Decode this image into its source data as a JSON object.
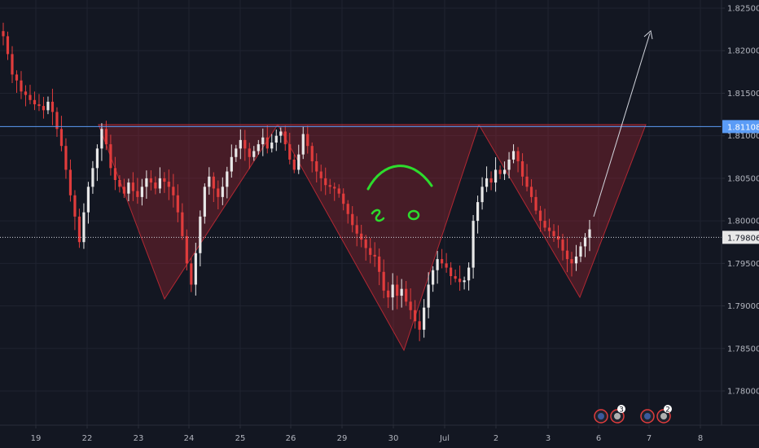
{
  "chart_data": {
    "type": "candlestick",
    "y_ticks": [
      "1.82500",
      "1.82000",
      "1.81500",
      "1.81000",
      "1.80500",
      "1.80000",
      "1.79500",
      "1.79000",
      "1.78500",
      "1.78000"
    ],
    "x_ticks": [
      "19",
      "22",
      "23",
      "24",
      "25",
      "26",
      "29",
      "30",
      "Jul",
      "2",
      "3",
      "6",
      "7",
      "8"
    ],
    "ylim": [
      1.7755,
      1.826
    ],
    "neckline": {
      "value": 1.81108,
      "label": "1.81108",
      "color": "#5b9cf6"
    },
    "current_price": {
      "value": 1.79806,
      "label": "1.79806"
    },
    "pattern": "inverse head and shoulders",
    "pattern_color": "#b22833",
    "projection_arrow_color": "#d1d4dc",
    "up_color": "#e8e8e8",
    "down_color": "#e03c3c",
    "candle_series": [
      1.8217,
      1.8196,
      1.8172,
      1.8165,
      1.8152,
      1.8148,
      1.8142,
      1.8137,
      1.8135,
      1.813,
      1.814,
      1.8128,
      1.8108,
      1.8088,
      1.806,
      1.803,
      1.8005,
      1.7975,
      1.801,
      1.804,
      1.8062,
      1.8085,
      1.8108,
      1.809,
      1.8062,
      1.8048,
      1.804,
      1.8032,
      1.8045,
      1.8035,
      1.8028,
      1.804,
      1.805,
      1.8045,
      1.8038,
      1.805,
      1.8046,
      1.804,
      1.803,
      1.801,
      1.7982,
      1.795,
      1.7925,
      1.7962,
      1.8005,
      1.804,
      1.8052,
      1.8038,
      1.8028,
      1.804,
      1.8058,
      1.8075,
      1.8085,
      1.8095,
      1.8085,
      1.8075,
      1.8082,
      1.809,
      1.8098,
      1.8085,
      1.8092,
      1.81,
      1.8105,
      1.809,
      1.8072,
      1.806,
      1.8078,
      1.8102,
      1.8088,
      1.807,
      1.8058,
      1.805,
      1.8042,
      1.804,
      1.8038,
      1.8032,
      1.802,
      1.8008,
      1.7995,
      1.7985,
      1.7978,
      1.7968,
      1.796,
      1.7958,
      1.794,
      1.7918,
      1.791,
      1.7925,
      1.7912,
      1.792,
      1.7905,
      1.7895,
      1.7882,
      1.7872,
      1.7898,
      1.7925,
      1.7942,
      1.7955,
      1.795,
      1.7945,
      1.7935,
      1.7932,
      1.7928,
      1.793,
      1.7945,
      1.8,
      1.8022,
      1.804,
      1.805,
      1.8045,
      1.806,
      1.8055,
      1.806,
      1.8072,
      1.8082,
      1.807,
      1.8052,
      1.804,
      1.8028,
      1.8012,
      1.8,
      1.7992,
      1.7988,
      1.7982,
      1.7978,
      1.7965,
      1.7955,
      1.795,
      1.7958,
      1.797,
      1.798,
      1.799
    ],
    "badges": [
      {
        "count": "3"
      },
      {
        "count": "2"
      }
    ]
  }
}
